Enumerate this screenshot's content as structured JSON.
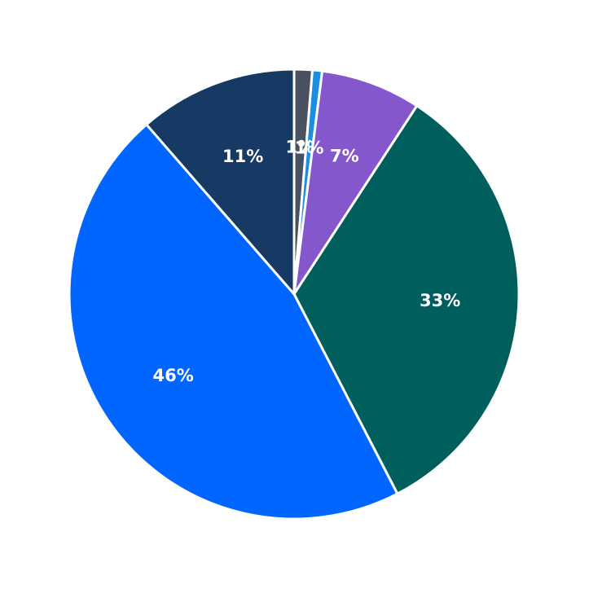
{
  "chart_data": {
    "type": "pie",
    "values": [
      1.3,
      0.7,
      7.2,
      33.2,
      46.2,
      11.4
    ],
    "value_labels": [
      "1%",
      "1%",
      "7%",
      "33%",
      "46%",
      "11%"
    ],
    "colors": [
      "#4a5160",
      "#1a8fe0",
      "#8457cc",
      "#005f5c",
      "#0066ff",
      "#163a63"
    ]
  }
}
